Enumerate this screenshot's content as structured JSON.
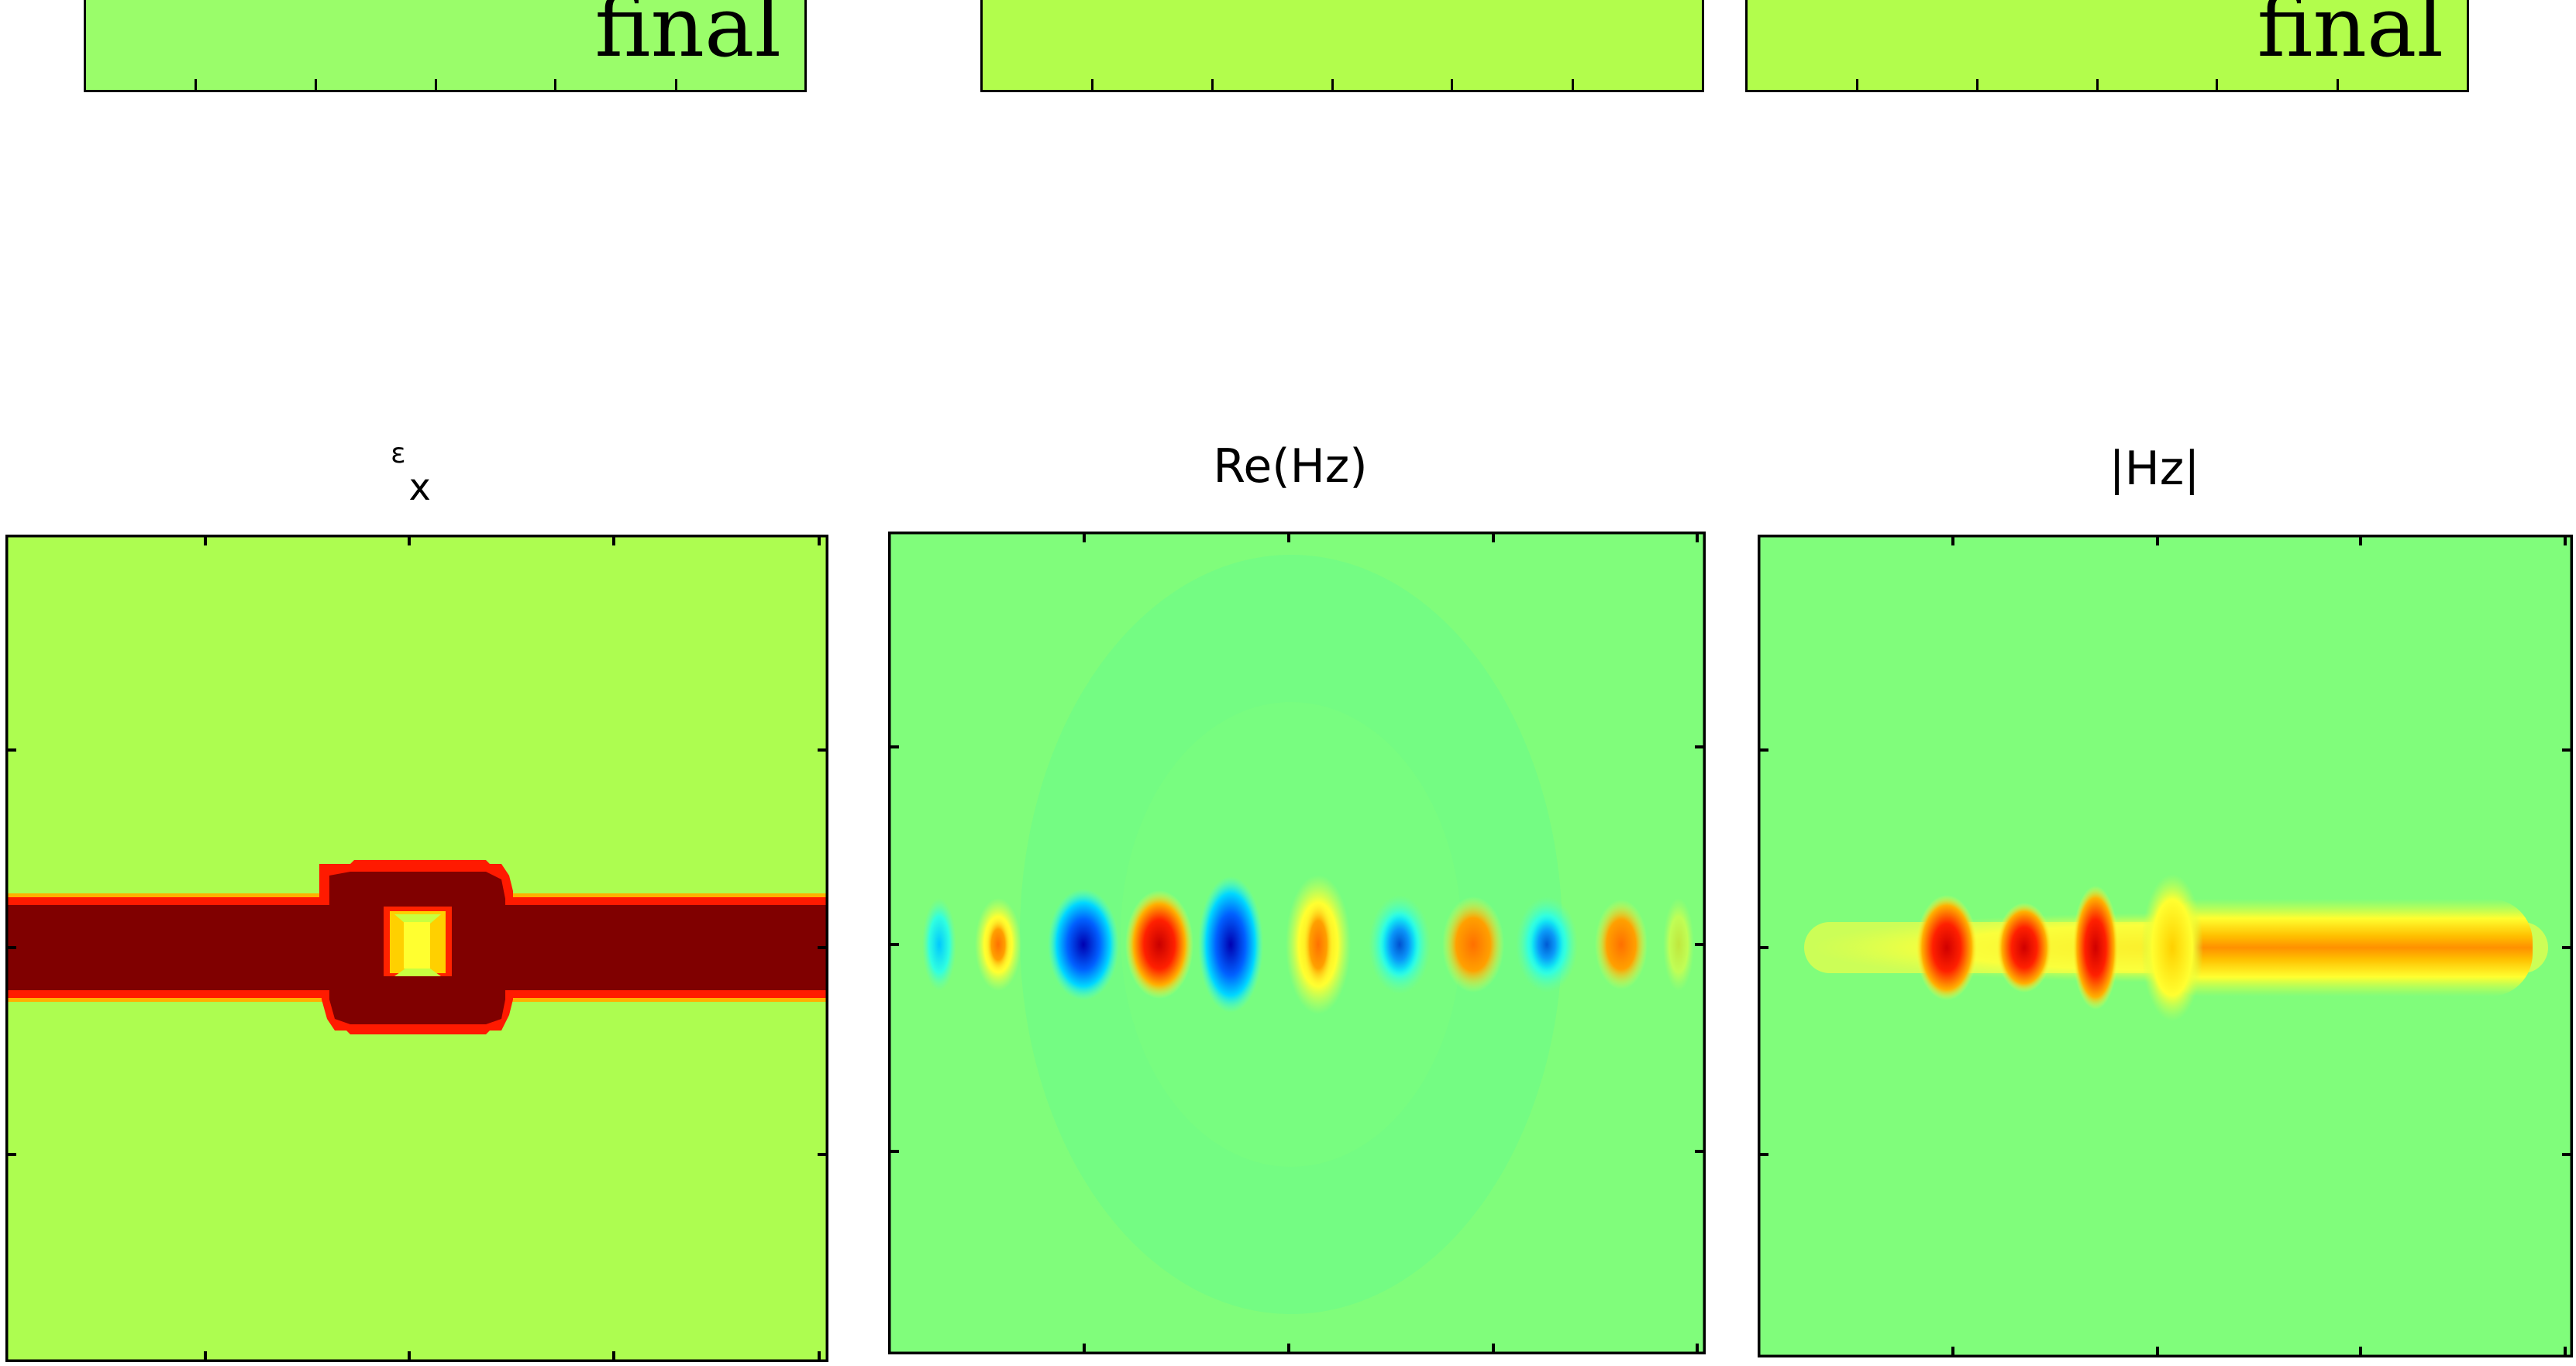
{
  "colors": {
    "background_green": "#adfd50",
    "field_green": "#80fd7b",
    "dark_red": "#800000",
    "red": "#ff0000",
    "orange": "#ff8c00",
    "yellow": "#ffff00",
    "cyan": "#00e4ff",
    "blue": "#0000c8"
  },
  "top_row": {
    "panels": [
      {
        "label": "final",
        "fill": "#9afd6a"
      },
      {
        "label": "",
        "fill": "#b2fd4c"
      },
      {
        "label": "final",
        "fill": "#b2fd4c"
      }
    ]
  },
  "bottom_row": {
    "plots": [
      {
        "title_symbol": "ε",
        "title_sub": "x",
        "title": ""
      },
      {
        "title": "Re(Hz)"
      },
      {
        "title": "|Hz|"
      }
    ]
  }
}
